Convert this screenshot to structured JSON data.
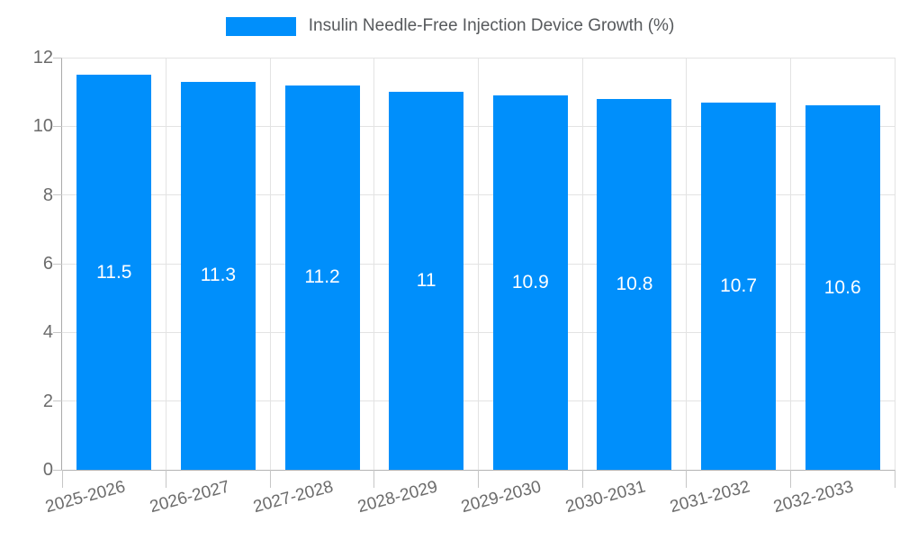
{
  "chart_data": {
    "type": "bar",
    "title": "Insulin Needle-Free Injection Device Growth (%)",
    "series_name": "Insulin Needle-Free Injection Device Growth (%)",
    "categories": [
      "2025-2026",
      "2026-2027",
      "2027-2028",
      "2028-2029",
      "2029-2030",
      "2030-2031",
      "2031-2032",
      "2032-2033"
    ],
    "values": [
      11.5,
      11.3,
      11.2,
      11,
      10.9,
      10.8,
      10.7,
      10.6
    ],
    "value_labels": [
      "11.5",
      "11.3",
      "11.2",
      "11",
      "10.9",
      "10.8",
      "10.7",
      "10.6"
    ],
    "xlabel": "",
    "ylabel": "",
    "ylim": [
      0,
      12
    ],
    "yticks": [
      0,
      2,
      4,
      6,
      8,
      10,
      12
    ],
    "ytick_labels": [
      "0",
      "2",
      "4",
      "6",
      "8",
      "10",
      "12"
    ],
    "grid": "on",
    "legend_position": "top-center",
    "x_label_rotation_deg": -15,
    "colors": {
      "bar": "#008FFB",
      "bar_label": "#ffffff",
      "axis_text": "#6b6b6b",
      "legend_text": "#56595c",
      "grid_line": "#e3e3e3",
      "axis_line": "#a9a9a9",
      "tick_line": "#c6c6c6",
      "background": "#ffffff"
    }
  }
}
